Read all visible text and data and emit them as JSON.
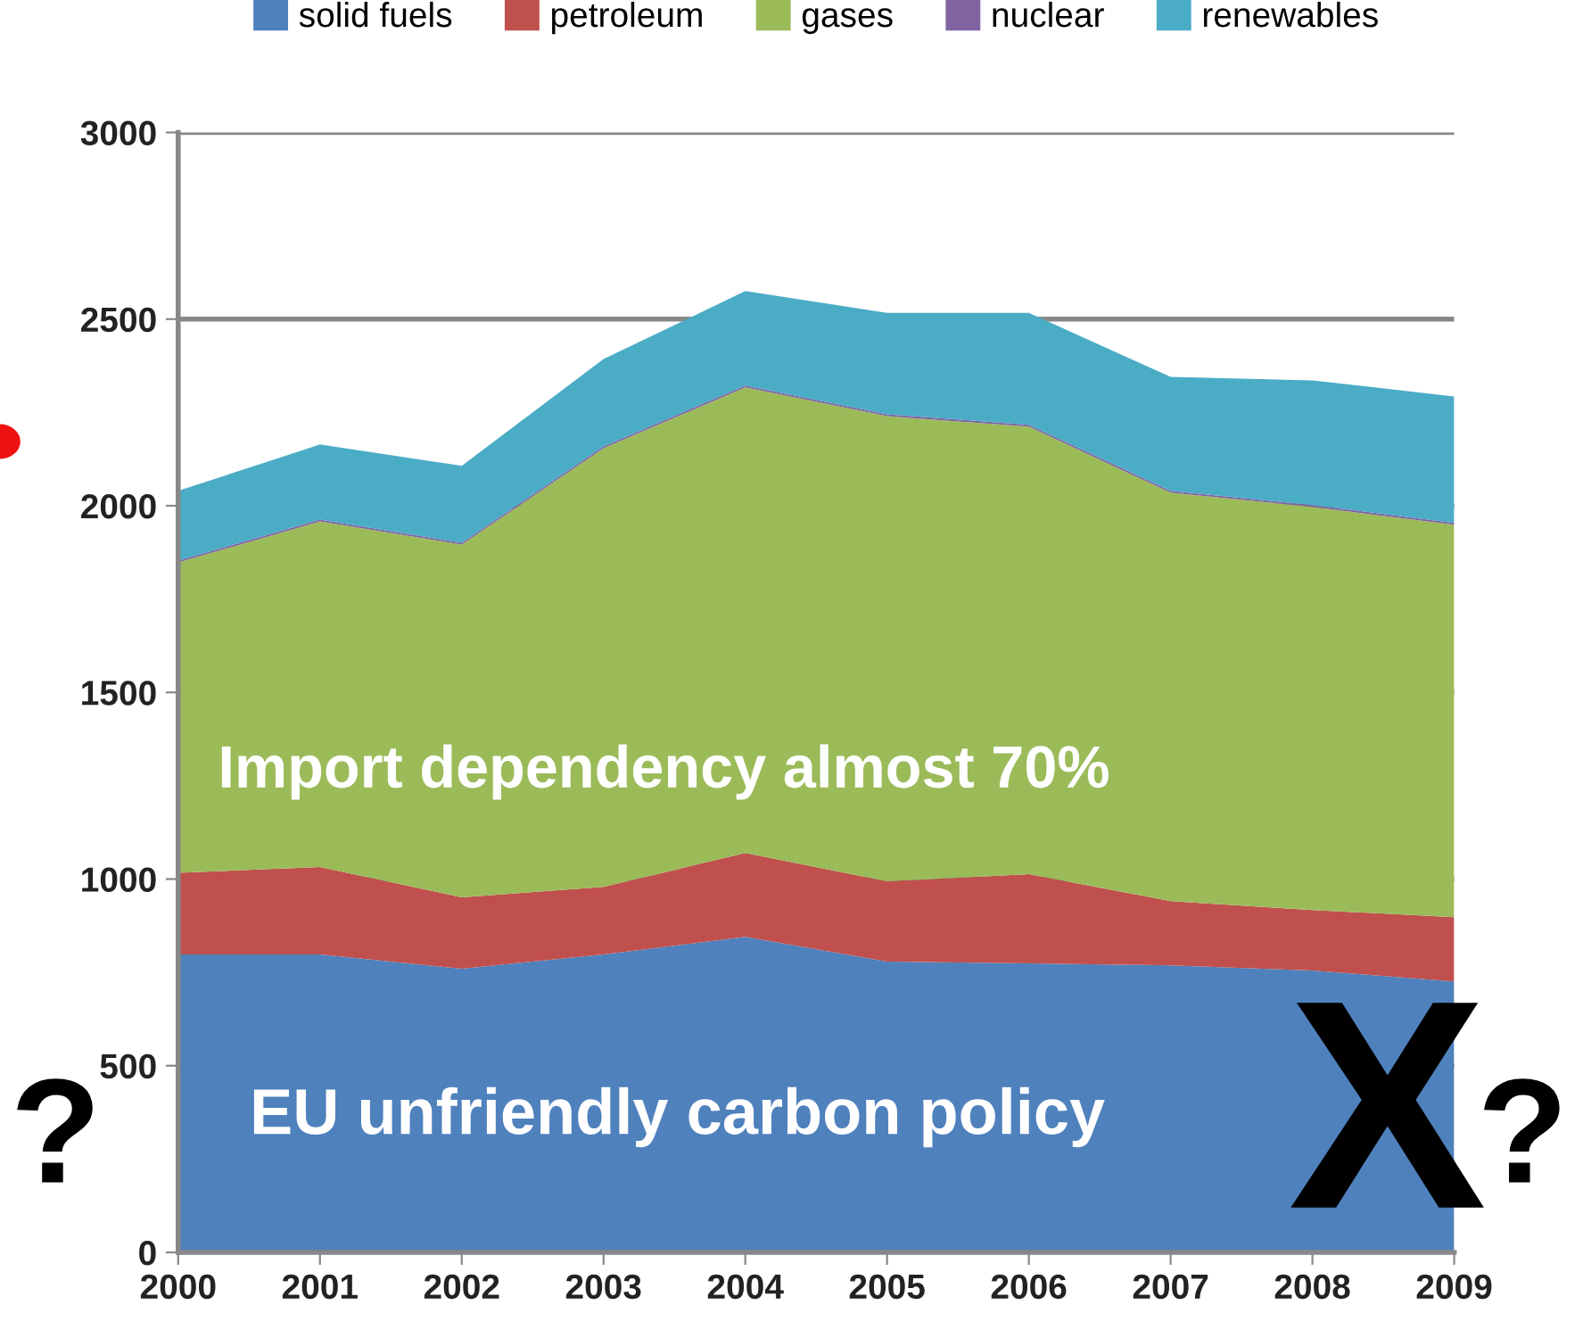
{
  "chart_data": {
    "type": "area",
    "stacked": true,
    "x": [
      2000,
      2001,
      2002,
      2003,
      2004,
      2005,
      2006,
      2007,
      2008,
      2009
    ],
    "series": [
      {
        "name": "solid fuels",
        "color": "#4f81bd",
        "values": [
          798,
          798,
          760,
          798,
          845,
          779,
          774,
          769,
          755,
          726
        ]
      },
      {
        "name": "petroleum",
        "color": "#c0504d",
        "values": [
          219,
          234,
          191,
          181,
          225,
          215,
          239,
          172,
          162,
          172
        ]
      },
      {
        "name": "gases",
        "color": "#9bbb59",
        "values": [
          831,
          926,
          945,
          1175,
          1247,
          1246,
          1199,
          1094,
          1080,
          1051
        ]
      },
      {
        "name": "nuclear",
        "color": "#8064a2",
        "values": [
          5,
          5,
          5,
          5,
          5,
          5,
          5,
          5,
          5,
          5
        ]
      },
      {
        "name": "renewables",
        "color": "#4bacc6",
        "values": [
          187,
          201,
          206,
          234,
          253,
          272,
          300,
          305,
          334,
          339
        ]
      }
    ],
    "xlim": [
      2000,
      2009
    ],
    "xticks": [
      2000,
      2001,
      2002,
      2003,
      2004,
      2005,
      2006,
      2007,
      2008,
      2009
    ],
    "ylim": [
      0,
      3000
    ],
    "yticks": [
      0,
      500,
      1000,
      1500,
      2000,
      2500,
      3000
    ],
    "grid": "y",
    "legend": "top",
    "annotations": [
      "Import dependency almost 70%",
      "EU unfriendly carbon policy",
      "?",
      "X",
      "?"
    ]
  }
}
